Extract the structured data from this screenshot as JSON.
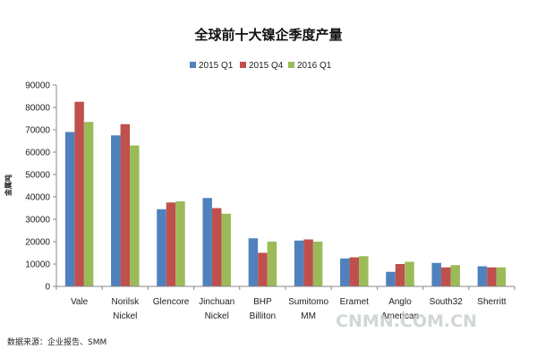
{
  "chart_data": {
    "type": "bar",
    "title": "全球前十大镍企季度产量",
    "ylabel": "金属吨",
    "xlabel": "",
    "ylim": [
      0,
      90000
    ],
    "yticks": [
      0,
      10000,
      20000,
      30000,
      40000,
      50000,
      60000,
      70000,
      80000,
      90000
    ],
    "grid": false,
    "legend_position": "top",
    "categories": [
      [
        "Vale"
      ],
      [
        "Norilsk",
        "Nickel"
      ],
      [
        "Glencore"
      ],
      [
        "Jinchuan",
        "Nickel"
      ],
      [
        "BHP",
        "Billiton"
      ],
      [
        "Sumitomo",
        "MM"
      ],
      [
        "Eramet"
      ],
      [
        "Anglo",
        "American"
      ],
      [
        "South32"
      ],
      [
        "Sherritt"
      ]
    ],
    "series": [
      {
        "name": "2015 Q1",
        "color": "#4F81BD",
        "values": [
          69000,
          67500,
          34500,
          39500,
          21500,
          20500,
          12500,
          6500,
          10500,
          9000
        ]
      },
      {
        "name": "2015 Q4",
        "color": "#C0504D",
        "values": [
          82500,
          72500,
          37500,
          35000,
          15000,
          21000,
          13000,
          10000,
          8500,
          8500
        ]
      },
      {
        "name": "2016 Q1",
        "color": "#9BBB59",
        "values": [
          73500,
          63000,
          38000,
          32500,
          20000,
          20000,
          13500,
          11000,
          9500,
          8500
        ]
      }
    ]
  },
  "source_text": "数据来源：企业报告、SMM",
  "watermark_text": "CNMN.COM.CN"
}
